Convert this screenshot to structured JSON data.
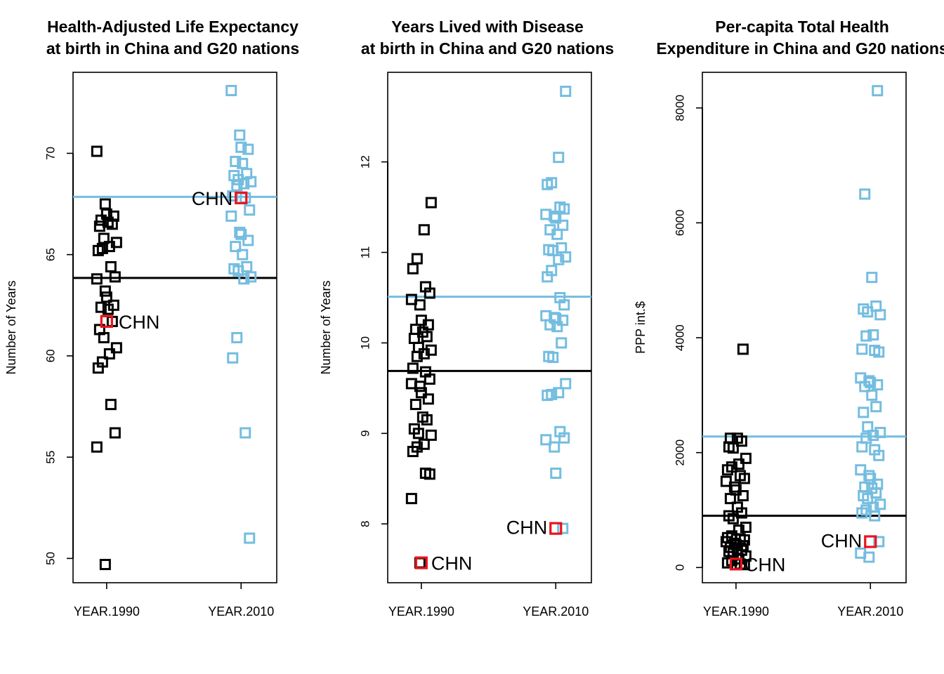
{
  "colors": {
    "y1990": "#000000",
    "y2010": "#74bde0",
    "china": "#e8141b"
  },
  "chart_data": [
    {
      "type": "scatter",
      "title_line1": "Health-Adjusted Life Expectancy",
      "title_line2": "at birth in China and G20 nations",
      "ylabel": "Number of Years",
      "categories": [
        "YEAR.1990",
        "YEAR.2010"
      ],
      "ylim": [
        48.8,
        74
      ],
      "yticks": [
        50,
        55,
        60,
        65,
        70
      ],
      "label": "CHN",
      "series": [
        {
          "values": [
            70.1,
            67.5,
            67.0,
            66.9,
            66.7,
            66.6,
            66.5,
            66.4,
            65.8,
            65.6,
            65.4,
            65.3,
            65.2,
            64.4,
            63.9,
            63.8,
            63.2,
            62.9,
            62.5,
            62.4,
            62.3,
            61.7,
            61.3,
            60.9,
            60.4,
            60.1,
            59.7,
            59.4,
            57.6,
            56.2,
            55.5,
            49.7
          ],
          "china": 61.7,
          "mean": 63.85
        },
        {
          "values": [
            73.1,
            70.9,
            70.3,
            70.2,
            69.6,
            69.5,
            69.0,
            68.9,
            68.7,
            68.6,
            68.5,
            68.4,
            67.9,
            67.8,
            67.2,
            66.9,
            66.1,
            66.0,
            65.7,
            65.4,
            65.0,
            64.4,
            64.3,
            64.2,
            63.9,
            63.8,
            60.9,
            59.9,
            56.2,
            51.0
          ],
          "china": 67.8,
          "mean": 67.85
        }
      ]
    },
    {
      "type": "scatter",
      "title_line1": "Years Lived with Disease",
      "title_line2": "at birth in China and G20 nations",
      "ylabel": "Number of Years",
      "categories": [
        "YEAR.1990",
        "YEAR.2010"
      ],
      "ylim": [
        7.35,
        12.99
      ],
      "yticks": [
        8,
        9,
        10,
        11,
        12
      ],
      "label": "CHN",
      "series": [
        {
          "values": [
            11.55,
            11.25,
            10.93,
            10.82,
            10.62,
            10.55,
            10.48,
            10.42,
            10.25,
            10.2,
            10.15,
            10.12,
            10.07,
            10.05,
            9.95,
            9.92,
            9.88,
            9.85,
            9.72,
            9.68,
            9.6,
            9.55,
            9.52,
            9.45,
            9.38,
            9.32,
            9.18,
            9.15,
            9.05,
            9.0,
            8.98,
            8.88,
            8.85,
            8.8,
            8.56,
            8.55,
            8.28,
            7.57
          ],
          "china": 7.57,
          "mean": 9.69
        },
        {
          "values": [
            12.78,
            12.05,
            11.77,
            11.75,
            11.5,
            11.48,
            11.42,
            11.4,
            11.38,
            11.3,
            11.25,
            11.2,
            11.05,
            11.03,
            11.02,
            10.95,
            10.92,
            10.8,
            10.73,
            10.5,
            10.42,
            10.3,
            10.28,
            10.27,
            10.25,
            10.2,
            10.18,
            10.0,
            9.85,
            9.84,
            9.55,
            9.45,
            9.43,
            9.42,
            9.02,
            8.95,
            8.93,
            8.85,
            8.56,
            7.95
          ],
          "china": 7.95,
          "mean": 10.51
        }
      ]
    },
    {
      "type": "scatter",
      "title_line1": "Per-capita Total Health",
      "title_line2": "Expenditure in China and G20 nations",
      "ylabel": "PPP int.$",
      "categories": [
        "YEAR.1990",
        "YEAR.2010"
      ],
      "ylim": [
        -265,
        8620
      ],
      "yticks": [
        0,
        2000,
        4000,
        6000,
        8000
      ],
      "label": "CHN",
      "series": [
        {
          "values": [
            3800,
            2250,
            2250,
            2200,
            2100,
            2080,
            1900,
            1800,
            1750,
            1700,
            1600,
            1550,
            1500,
            1400,
            1350,
            1250,
            1200,
            1050,
            950,
            900,
            850,
            700,
            650,
            550,
            520,
            500,
            480,
            450,
            420,
            400,
            380,
            350,
            320,
            300,
            280,
            250,
            200,
            150,
            120,
            80,
            60,
            50
          ],
          "china": 60,
          "mean": 900
        },
        {
          "values": [
            8300,
            6500,
            5050,
            4550,
            4500,
            4450,
            4400,
            4050,
            4030,
            3800,
            3780,
            3750,
            3300,
            3250,
            3220,
            3180,
            3150,
            3000,
            2800,
            2700,
            2450,
            2350,
            2300,
            2250,
            2100,
            2050,
            1950,
            1700,
            1600,
            1550,
            1450,
            1400,
            1380,
            1300,
            1250,
            1200,
            1100,
            1050,
            1000,
            950,
            900,
            450,
            250,
            180
          ],
          "china": 450,
          "mean": 2280
        }
      ]
    }
  ]
}
